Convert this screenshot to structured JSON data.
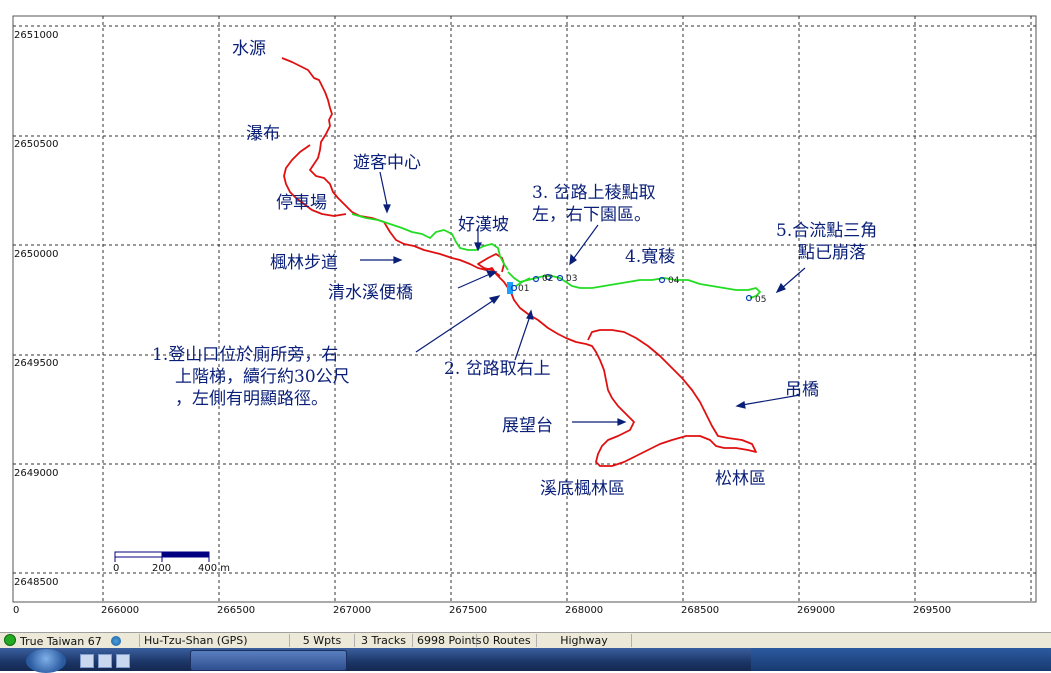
{
  "map": {
    "x_ticks": [
      "266000",
      "266500",
      "267000",
      "267500",
      "268000",
      "268500",
      "269000",
      "269500"
    ],
    "x_zero_label": "0",
    "y_ticks": [
      "2651000",
      "2650500",
      "2650000",
      "2649500",
      "2649000",
      "2648500"
    ],
    "scale_bar": {
      "labels": [
        "0",
        "200",
        "400 m"
      ]
    },
    "waypoints": [
      "01",
      "02",
      "03",
      "04",
      "05"
    ],
    "colors": {
      "red_track": "#e01010",
      "green_track": "#22dd22",
      "annotation_blue": "#0a1f78",
      "waypoint": "#1040c0"
    },
    "annotations": {
      "water_source": "水源",
      "waterfall": "瀑布",
      "visitor_center": "遊客中心",
      "parking": "停車場",
      "haohan_slope": "好漢坡",
      "fork_ridge_line1": "3. 岔路上稜點取",
      "fork_ridge_line2": "左，右下園區。",
      "wide_ridge": "4.寬稜",
      "confluence_line1": "5.合流點三角",
      "confluence_line2": "點已崩落",
      "maple_trail": "楓林步道",
      "qingshui_bridge": "清水溪便橋",
      "trailhead_line1": "1.登山口位於廁所旁，右",
      "trailhead_line2": "上階梯，續行約30公尺",
      "trailhead_line3": "，左側有明顯路徑。",
      "fork_right": "2. 岔路取右上",
      "suspension_bridge": "吊橋",
      "observation_deck": "展望台",
      "valley_maple": "溪底楓林區",
      "pine_forest": "松林區"
    }
  },
  "status_bar": {
    "datum": "True Taiwan 67",
    "track_name": "Hu-Tzu-Shan (GPS)",
    "waypoints": "5 Wpts",
    "tracks": "3 Tracks",
    "points": "6998 Points",
    "routes": "0 Routes",
    "layer": "Highway"
  }
}
